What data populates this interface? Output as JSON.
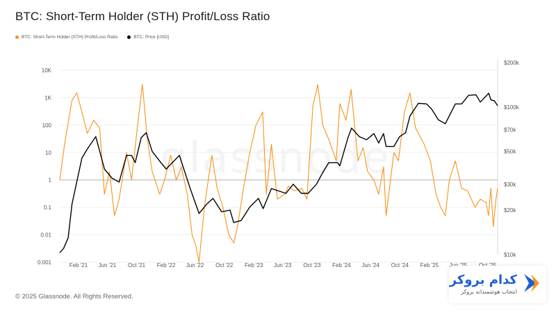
{
  "header": {
    "title": "BTC: Short-Term Holder (STH) Profit/Loss Ratio"
  },
  "legend": [
    {
      "label": "BTC: Short-Term Holder (STH) Profit/Loss Ratio",
      "color": "#f7931a"
    },
    {
      "label": "BTC: Price [USD]",
      "color": "#000000"
    }
  ],
  "footer": {
    "copyright": "© 2025 Glassnode. All Rights Reserved."
  },
  "watermark": "glassnode",
  "brand": {
    "name": "کدام بروکر",
    "tagline": "انتخاب هوشمندانه بروکر",
    "color": "#1f5fd6"
  },
  "chart_data": {
    "type": "line",
    "title": "BTC: Short-Term Holder (STH) Profit/Loss Ratio",
    "x_tick_labels": [
      "Feb '21",
      "Jun '21",
      "Oct '21",
      "Feb '22",
      "Jun '22",
      "Oct '22",
      "Feb '23",
      "Jun '23",
      "Oct '23",
      "Feb '24",
      "Jun '24",
      "Oct '24",
      "Feb '25",
      "Jun '25",
      "Oct '25"
    ],
    "left_axis": {
      "scale": "log",
      "range": [
        0.001,
        10000
      ],
      "ticks": [
        0.001,
        0.01,
        0.1,
        1,
        10,
        100,
        1000,
        10000
      ],
      "tick_labels": [
        "0.001",
        "0.01",
        "0.1",
        "1",
        "10",
        "100",
        "1K",
        "10K"
      ]
    },
    "right_axis": {
      "scale": "log",
      "range": [
        10000,
        200000
      ],
      "ticks": [
        10000,
        20000,
        30000,
        50000,
        70000,
        100000,
        200000
      ],
      "tick_labels": [
        "$10k",
        "$20k",
        "$30k",
        "$50k",
        "$70k",
        "$100k",
        "$200k"
      ]
    },
    "grid": true,
    "reference_line": 1,
    "series": [
      {
        "name": "BTC: Short-Term Holder (STH) Profit/Loss Ratio",
        "axis": "left",
        "color": "#f7931a",
        "x": [
          "2020-11-15",
          "2020-12-05",
          "2021-01-05",
          "2021-01-25",
          "2021-02-15",
          "2021-03-10",
          "2021-04-05",
          "2021-04-30",
          "2021-05-20",
          "2021-06-10",
          "2021-07-01",
          "2021-07-20",
          "2021-08-20",
          "2021-09-10",
          "2021-10-05",
          "2021-10-25",
          "2021-11-15",
          "2021-12-05",
          "2022-01-05",
          "2022-01-25",
          "2022-02-20",
          "2022-03-15",
          "2022-04-05",
          "2022-04-30",
          "2022-05-20",
          "2022-06-05",
          "2022-06-18",
          "2022-07-10",
          "2022-08-10",
          "2022-09-01",
          "2022-09-25",
          "2022-10-20",
          "2022-11-10",
          "2022-11-25",
          "2022-12-20",
          "2023-01-15",
          "2023-02-10",
          "2023-03-10",
          "2023-03-25",
          "2023-04-15",
          "2023-05-10",
          "2023-06-10",
          "2023-06-25",
          "2023-07-20",
          "2023-08-20",
          "2023-09-10",
          "2023-10-05",
          "2023-10-25",
          "2023-11-15",
          "2023-12-10",
          "2024-01-10",
          "2024-01-25",
          "2024-02-20",
          "2024-03-12",
          "2024-04-10",
          "2024-05-01",
          "2024-05-20",
          "2024-06-15",
          "2024-07-05",
          "2024-07-25",
          "2024-08-05",
          "2024-09-06",
          "2024-09-25",
          "2024-10-20",
          "2024-11-12",
          "2024-12-05",
          "2025-01-10",
          "2025-02-05",
          "2025-03-01",
          "2025-03-20",
          "2025-04-08",
          "2025-04-25",
          "2025-05-20",
          "2025-06-15",
          "2025-07-10",
          "2025-08-10",
          "2025-09-01",
          "2025-09-25",
          "2025-10-05",
          "2025-10-15",
          "2025-10-25",
          "2025-11-05",
          "2025-11-12"
        ],
        "values": [
          1,
          20,
          800,
          1500,
          300,
          50,
          150,
          80,
          0.3,
          2,
          0.05,
          0.2,
          10,
          1,
          100,
          3000,
          30,
          2,
          0.3,
          1,
          8,
          1,
          3,
          0.3,
          0.01,
          0.004,
          0.001,
          0.1,
          8,
          0.5,
          0.1,
          0.01,
          0.005,
          0.02,
          0.5,
          10,
          100,
          300,
          0.3,
          20,
          0.2,
          0.3,
          0.6,
          0.4,
          0.5,
          0.2,
          500,
          3000,
          100,
          30,
          5,
          600,
          150,
          2000,
          5,
          15,
          2,
          1,
          0.3,
          3,
          0.05,
          10,
          5,
          300,
          1500,
          80,
          20,
          5,
          0.3,
          0.1,
          0.05,
          1,
          5,
          0.5,
          0.4,
          0.1,
          0.2,
          0.15,
          0.05,
          0.5,
          0.02,
          0.2,
          0.5
        ]
      },
      {
        "name": "BTC: Price [USD]",
        "axis": "right",
        "color": "#000000",
        "x": [
          "2020-11-15",
          "2020-12-01",
          "2020-12-20",
          "2021-01-05",
          "2021-02-15",
          "2021-03-10",
          "2021-04-14",
          "2021-05-20",
          "2021-06-20",
          "2021-07-20",
          "2021-08-20",
          "2021-09-10",
          "2021-09-25",
          "2021-10-20",
          "2021-11-10",
          "2021-12-05",
          "2022-01-10",
          "2022-02-01",
          "2022-03-28",
          "2022-05-12",
          "2022-06-18",
          "2022-07-20",
          "2022-08-15",
          "2022-09-20",
          "2022-10-25",
          "2022-11-09",
          "2022-12-10",
          "2023-01-15",
          "2023-02-20",
          "2023-03-12",
          "2023-04-15",
          "2023-05-15",
          "2023-06-15",
          "2023-07-15",
          "2023-08-18",
          "2023-09-15",
          "2023-10-20",
          "2023-11-15",
          "2023-12-10",
          "2024-01-15",
          "2024-01-25",
          "2024-02-28",
          "2024-03-14",
          "2024-04-15",
          "2024-05-15",
          "2024-06-15",
          "2024-07-05",
          "2024-07-25",
          "2024-08-05",
          "2024-09-06",
          "2024-09-30",
          "2024-10-25",
          "2024-11-12",
          "2024-12-17",
          "2025-01-20",
          "2025-02-10",
          "2025-03-10",
          "2025-04-08",
          "2025-05-20",
          "2025-06-15",
          "2025-07-14",
          "2025-08-14",
          "2025-09-01",
          "2025-10-06",
          "2025-10-15",
          "2025-10-30",
          "2025-11-12"
        ],
        "values": [
          10300,
          11000,
          13000,
          22000,
          45000,
          52000,
          63000,
          38000,
          33000,
          31000,
          47000,
          47000,
          42000,
          62000,
          67000,
          50000,
          42000,
          38000,
          47000,
          28000,
          19000,
          22000,
          24000,
          19500,
          20000,
          16500,
          17000,
          21000,
          24000,
          20500,
          28000,
          27000,
          26000,
          30000,
          26000,
          26000,
          30000,
          36000,
          42000,
          42000,
          40000,
          62000,
          72000,
          63000,
          60000,
          66000,
          57000,
          66000,
          54000,
          54000,
          63000,
          67000,
          87000,
          106000,
          105000,
          97000,
          82000,
          77000,
          105000,
          105000,
          120000,
          121000,
          108000,
          124000,
          112000,
          110000,
          102000
        ]
      }
    ]
  }
}
